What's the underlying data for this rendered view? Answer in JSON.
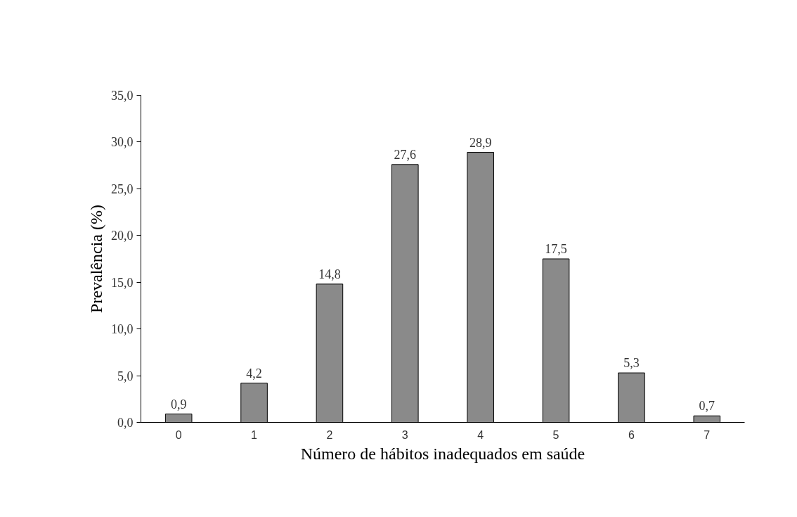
{
  "chart_data": {
    "type": "bar",
    "xlabel": "Número de hábitos inadequados em saúde",
    "ylabel": "Prevalência (%)",
    "categories": [
      "0",
      "1",
      "2",
      "3",
      "4",
      "5",
      "6",
      "7"
    ],
    "values": [
      0.9,
      4.2,
      14.8,
      27.6,
      28.9,
      17.5,
      5.3,
      0.7
    ],
    "value_labels": [
      "0,9",
      "4,2",
      "14,8",
      "27,6",
      "28,9",
      "17,5",
      "5,3",
      "0,7"
    ],
    "color": "#8a8a8a",
    "ylim": [
      0,
      35
    ],
    "yticks": [
      {
        "value": 0,
        "label": "0,0"
      },
      {
        "value": 5,
        "label": "5,0"
      },
      {
        "value": 10,
        "label": "10,0"
      },
      {
        "value": 15,
        "label": "15,0"
      },
      {
        "value": 20,
        "label": "20,0"
      },
      {
        "value": 25,
        "label": "25,0"
      },
      {
        "value": 30,
        "label": "30,0"
      },
      {
        "value": 35,
        "label": "35,0"
      }
    ],
    "grid": false
  }
}
